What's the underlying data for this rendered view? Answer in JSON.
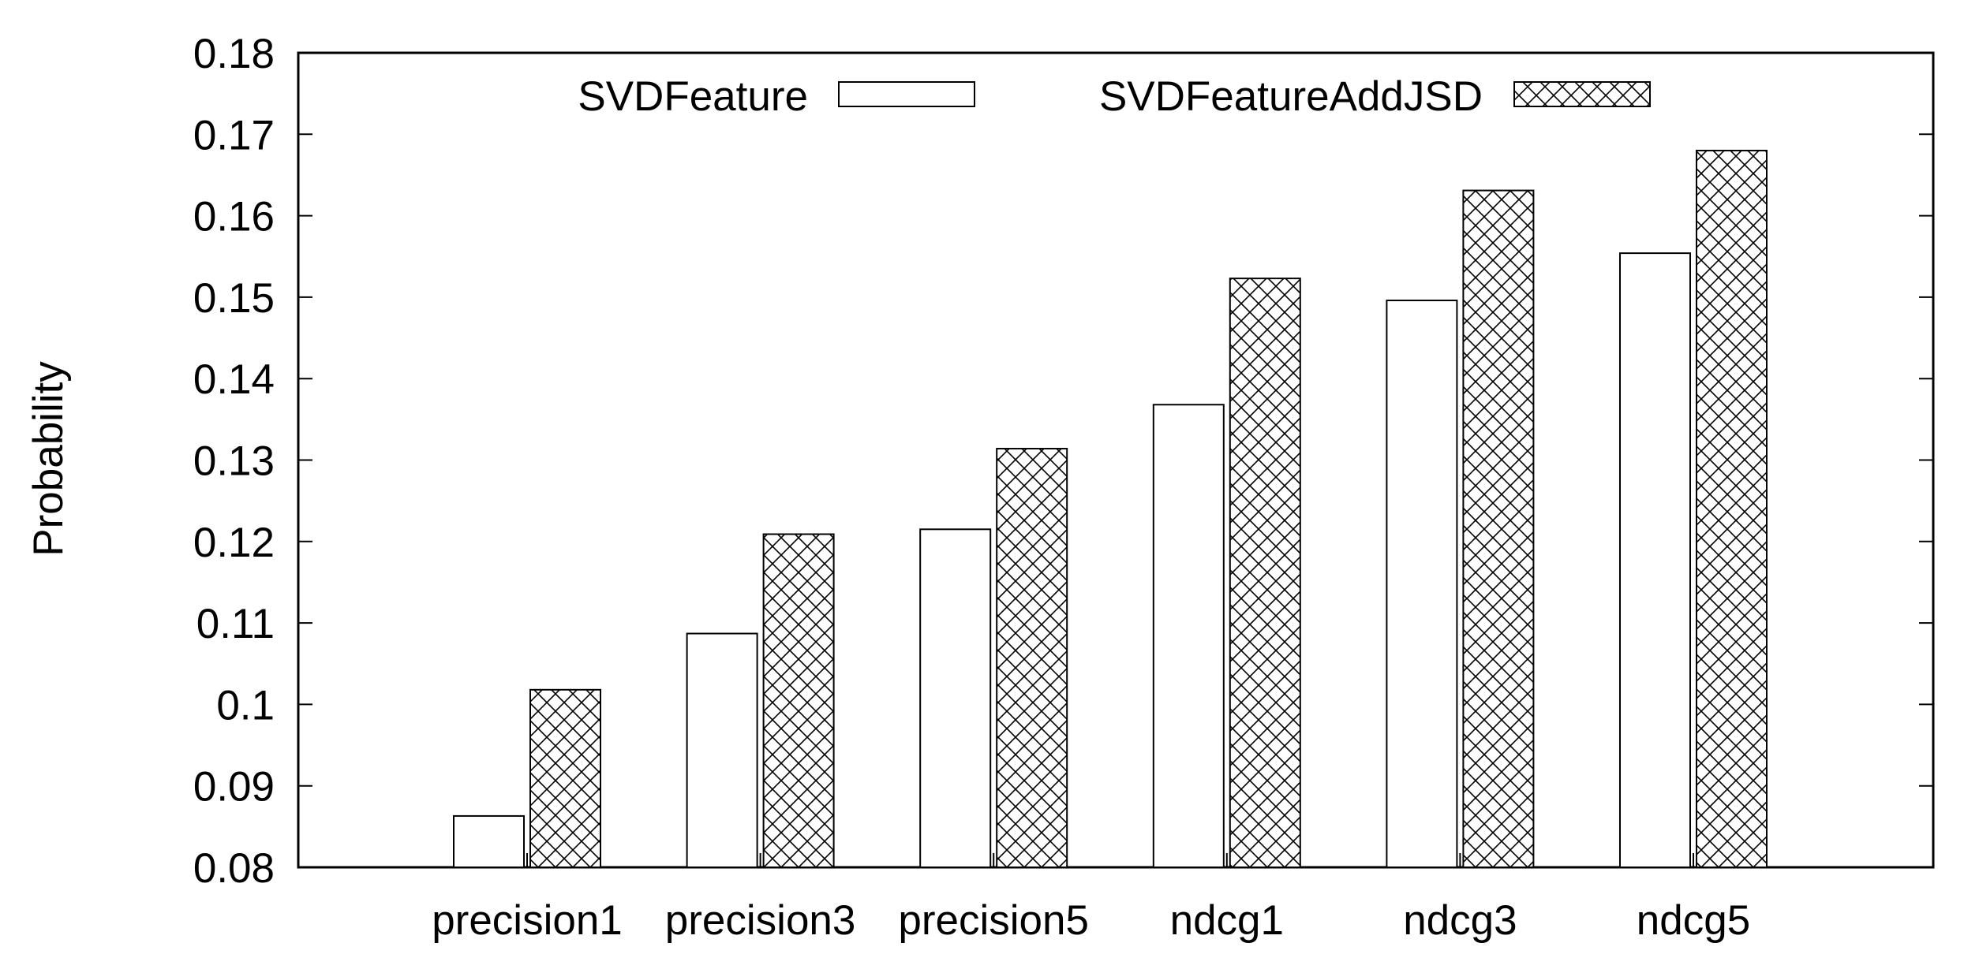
{
  "chart_data": {
    "type": "bar",
    "title": "",
    "xlabel": "",
    "ylabel": "Probability",
    "ylim": [
      0.08,
      0.18
    ],
    "yticks": [
      "0.08",
      "0.09",
      "0.1",
      "0.11",
      "0.12",
      "0.13",
      "0.14",
      "0.15",
      "0.16",
      "0.17",
      "0.18"
    ],
    "categories": [
      "precision1",
      "precision3",
      "precision5",
      "ndcg1",
      "ndcg3",
      "ndcg5"
    ],
    "series": [
      {
        "name": "SVDFeature",
        "pattern": "solid-white",
        "values": [
          0.0863,
          0.1087,
          0.1215,
          0.1368,
          0.1496,
          0.1554
        ]
      },
      {
        "name": "SVDFeatureAddJSD",
        "pattern": "crosshatch",
        "values": [
          0.1018,
          0.1209,
          0.1314,
          0.1523,
          0.1631,
          0.168
        ]
      }
    ],
    "legend_position": "top",
    "grid": false,
    "colors": {
      "bar_fill": "#ffffff",
      "stroke": "#000000",
      "hatch": "#000000"
    }
  }
}
